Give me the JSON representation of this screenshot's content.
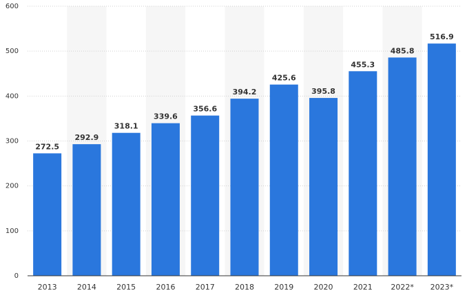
{
  "chart_data": {
    "type": "bar",
    "categories": [
      "2013",
      "2014",
      "2015",
      "2016",
      "2017",
      "2018",
      "2019",
      "2020",
      "2021",
      "2022*",
      "2023*"
    ],
    "values": [
      272.5,
      292.9,
      318.1,
      339.6,
      356.6,
      394.2,
      425.6,
      395.8,
      455.3,
      485.8,
      516.9
    ],
    "value_labels": [
      "272.5",
      "292.9",
      "318.1",
      "339.6",
      "356.6",
      "394.2",
      "425.6",
      "395.8",
      "455.3",
      "485.8",
      "516.9"
    ],
    "title": "",
    "xlabel": "",
    "ylabel": "",
    "ylim": [
      0,
      600
    ],
    "yticks": [
      0,
      100,
      200,
      300,
      400,
      500,
      600
    ],
    "grid": true,
    "legend": "none",
    "colors": {
      "bar": "#2a77dd",
      "band": "#f6f6f6",
      "grid": "#cfcfcf",
      "axis": "#333333"
    }
  }
}
